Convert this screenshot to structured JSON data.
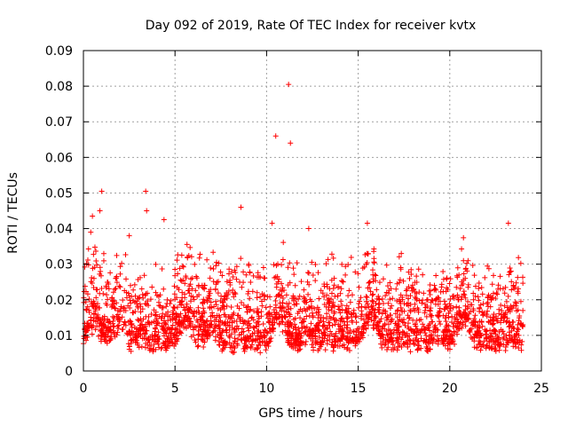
{
  "chart_data": {
    "type": "scatter",
    "title": "Day 092 of 2019, Rate Of TEC Index for receiver kvtx",
    "xlabel": "GPS time / hours",
    "ylabel": "ROTI / TECUs",
    "xlim": [
      0,
      25
    ],
    "ylim": [
      0,
      0.09
    ],
    "x_ticks": [
      "0",
      "5",
      "10",
      "15",
      "20",
      "25"
    ],
    "y_ticks": [
      "0",
      "0.01",
      "0.02",
      "0.03",
      "0.04",
      "0.05",
      "0.06",
      "0.07",
      "0.08",
      "0.09"
    ],
    "grid": true,
    "marker": "plus",
    "series_color": "#ff0000",
    "description_of_bulk": "dense band of points between ~0.005 and ~0.03 TECU for t in [0, 24] h",
    "outliers": [
      {
        "x": 1.0,
        "y": 0.0505
      },
      {
        "x": 0.9,
        "y": 0.045
      },
      {
        "x": 3.4,
        "y": 0.0505
      },
      {
        "x": 3.45,
        "y": 0.045
      },
      {
        "x": 10.5,
        "y": 0.066
      },
      {
        "x": 11.2,
        "y": 0.0805
      },
      {
        "x": 11.3,
        "y": 0.064
      },
      {
        "x": 8.6,
        "y": 0.046
      },
      {
        "x": 23.2,
        "y": 0.0415
      },
      {
        "x": 15.5,
        "y": 0.0415
      },
      {
        "x": 0.4,
        "y": 0.039
      },
      {
        "x": 4.4,
        "y": 0.0425
      },
      {
        "x": 2.5,
        "y": 0.038
      },
      {
        "x": 10.3,
        "y": 0.0415
      },
      {
        "x": 12.3,
        "y": 0.04
      }
    ]
  }
}
